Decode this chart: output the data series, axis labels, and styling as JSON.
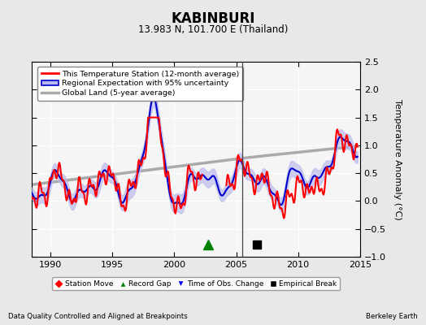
{
  "title": "KABINBURI",
  "subtitle": "13.983 N, 101.700 E (Thailand)",
  "ylabel": "Temperature Anomaly (°C)",
  "xlabel_left": "Data Quality Controlled and Aligned at Breakpoints",
  "xlabel_right": "Berkeley Earth",
  "xlim": [
    1988.5,
    2014.8
  ],
  "ylim": [
    -1.0,
    2.5
  ],
  "yticks": [
    -1.0,
    -0.5,
    0.0,
    0.5,
    1.0,
    1.5,
    2.0,
    2.5
  ],
  "xticks": [
    1990,
    1995,
    2000,
    2005,
    2010,
    2015
  ],
  "bg_color": "#e8e8e8",
  "plot_bg_color": "#f5f5f5",
  "grid_color": "#ffffff",
  "red_color": "#ff0000",
  "blue_color": "#0000cc",
  "blue_fill_color": "#b8b8ee",
  "gray_color": "#aaaaaa",
  "record_gap_x": 2002.7,
  "record_gap_y": -0.78,
  "empirical_break_x": 2006.7,
  "empirical_break_y": -0.78,
  "vline_x": 2005.5
}
